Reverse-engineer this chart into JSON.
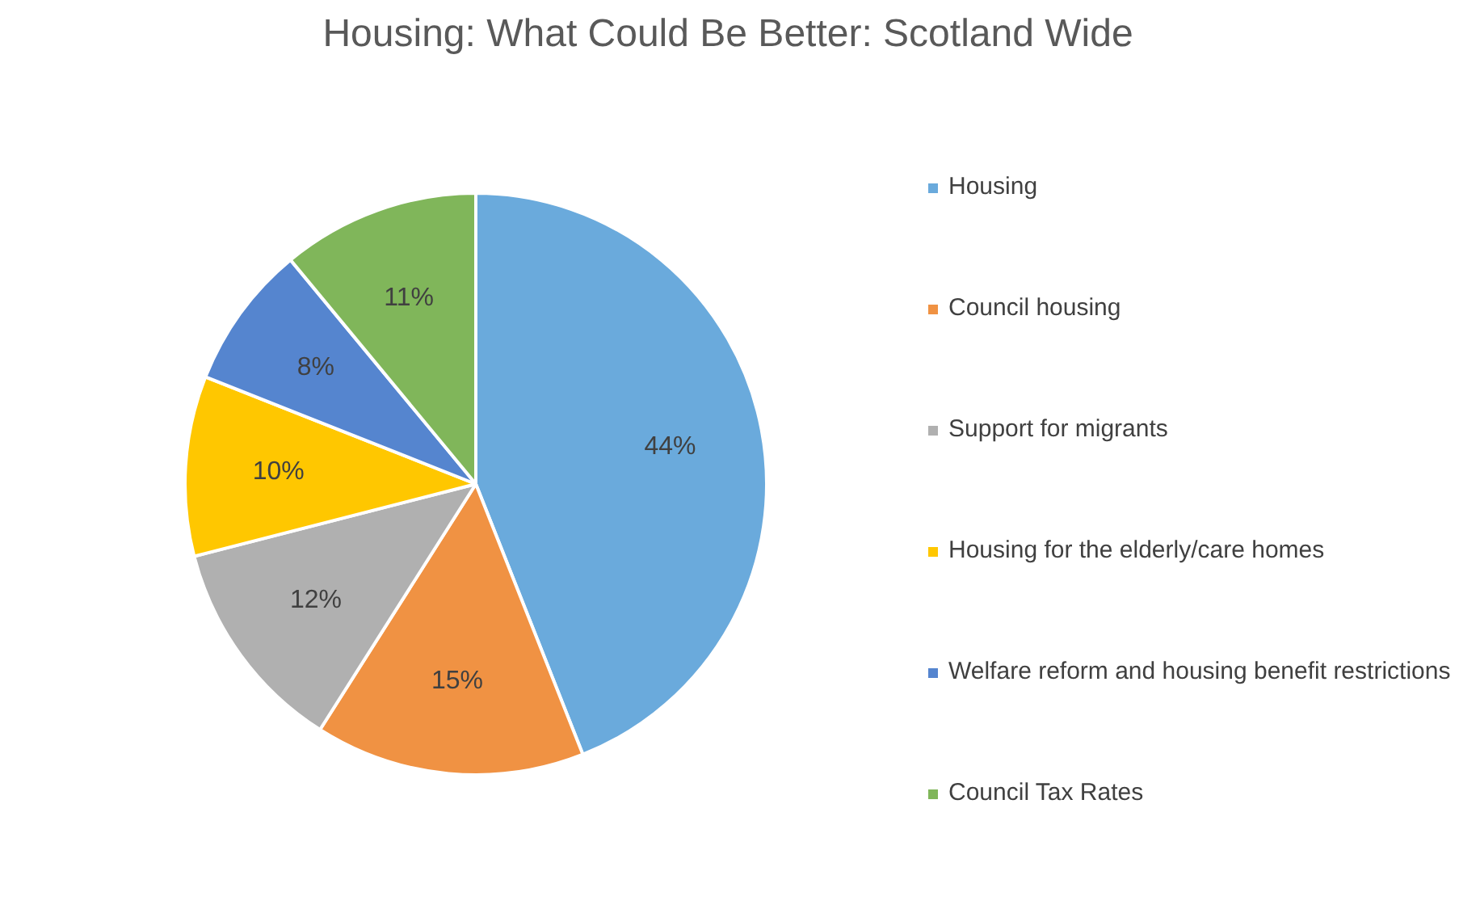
{
  "chart_data": {
    "type": "pie",
    "title": "Housing: What Could Be Better: Scotland Wide",
    "categories": [
      "Housing",
      "Council housing",
      "Support for migrants",
      "Housing for the elderly/care homes",
      "Welfare reform and housing benefit restrictions",
      "Council Tax Rates"
    ],
    "values": [
      44,
      15,
      12,
      10,
      8,
      11
    ],
    "colors": [
      "#6aaadc",
      "#f09243",
      "#b0b0b0",
      "#ffc700",
      "#5585cf",
      "#80b65a"
    ],
    "value_labels": [
      "44%",
      "15%",
      "12%",
      "10%",
      "8%",
      "11%"
    ],
    "legend": "right"
  }
}
